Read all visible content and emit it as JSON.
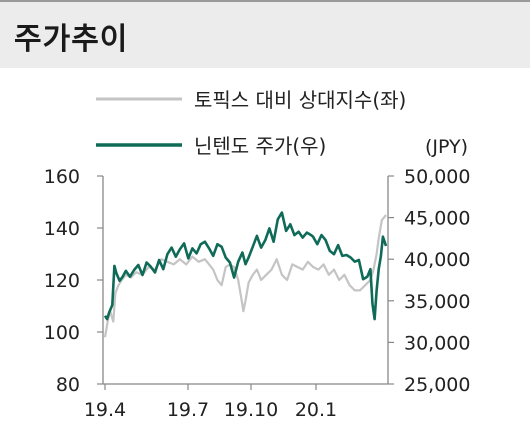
{
  "header": {
    "title": "주가추이"
  },
  "chart_data": {
    "type": "line",
    "unit_right": "(JPY)",
    "x_ticks": [
      "19.4",
      "19.7",
      "19.10",
      "20.1"
    ],
    "y_left": {
      "ticks": [
        "160",
        "140",
        "120",
        "100",
        "80"
      ],
      "range": [
        80,
        160
      ]
    },
    "y_right": {
      "ticks": [
        "50,000",
        "45,000",
        "40,000",
        "35,000",
        "30,000",
        "25,000"
      ],
      "range": [
        25000,
        50000
      ]
    },
    "legend_placement": "top",
    "series": [
      {
        "name": "토픽스 대비 상대지수(좌)",
        "axis": "left",
        "color": "#c4c4c4",
        "x": [
          0,
          3,
          5,
          8,
          10,
          13,
          16,
          20,
          25,
          30,
          36,
          42,
          48,
          54,
          60,
          66,
          72,
          78,
          84,
          90,
          96,
          100,
          104,
          108,
          112,
          116,
          120,
          124,
          128,
          131,
          133,
          135,
          138,
          142,
          146,
          150,
          155,
          160,
          165,
          170,
          175,
          180,
          185,
          190,
          195,
          200,
          205,
          210,
          215,
          220,
          225,
          230,
          235,
          240,
          245,
          250,
          255,
          258,
          261,
          263,
          266,
          270
        ],
        "values": [
          98,
          105,
          108,
          104,
          115,
          118,
          120,
          122,
          121,
          123,
          122,
          125,
          124,
          128,
          127,
          126,
          128,
          126,
          129,
          127,
          128,
          126,
          124,
          120,
          118,
          125,
          126,
          125,
          120,
          113,
          108,
          112,
          119,
          122,
          124,
          120,
          122,
          124,
          128,
          122,
          120,
          126,
          125,
          124,
          127,
          125,
          124,
          126,
          122,
          124,
          120,
          122,
          118,
          116,
          116,
          118,
          120,
          124,
          130,
          136,
          143,
          145
        ]
      },
      {
        "name": "닌텐도 주가(우)",
        "axis": "right",
        "color": "#0f6b58",
        "x": [
          0,
          2,
          4,
          7,
          9,
          11,
          14,
          17,
          20,
          24,
          28,
          32,
          36,
          40,
          44,
          48,
          52,
          56,
          60,
          64,
          68,
          72,
          76,
          80,
          84,
          88,
          92,
          96,
          100,
          104,
          108,
          112,
          116,
          120,
          124,
          128,
          132,
          135,
          138,
          142,
          146,
          150,
          154,
          158,
          162,
          166,
          170,
          174,
          178,
          182,
          186,
          190,
          194,
          198,
          200,
          204,
          208,
          212,
          216,
          220,
          224,
          228,
          232,
          236,
          240,
          244,
          248,
          252,
          255,
          257,
          259,
          261,
          263,
          265,
          267,
          270
        ],
        "values": [
          33200,
          32800,
          33600,
          34500,
          39200,
          38300,
          37400,
          37900,
          38600,
          37900,
          38700,
          39300,
          38100,
          39600,
          39100,
          38400,
          39900,
          38800,
          40600,
          41400,
          40300,
          41200,
          41900,
          40100,
          41300,
          40700,
          41800,
          42100,
          41300,
          40400,
          41800,
          41500,
          40200,
          39600,
          37800,
          39700,
          40800,
          39400,
          40200,
          41500,
          42800,
          41400,
          42300,
          43700,
          42100,
          44800,
          45600,
          43400,
          44200,
          42900,
          43300,
          42600,
          43200,
          42900,
          42700,
          41800,
          42900,
          42300,
          41000,
          40600,
          41700,
          40400,
          40500,
          40200,
          39700,
          39900,
          37600,
          37900,
          38800,
          34600,
          32800,
          36200,
          38800,
          40300,
          42700,
          41600
        ]
      }
    ]
  }
}
